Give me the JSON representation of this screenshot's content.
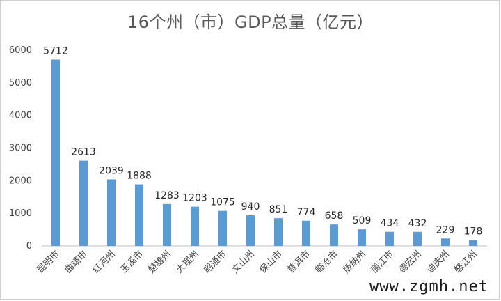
{
  "chart_data": {
    "type": "bar",
    "title": "16个州（市）GDP总量（亿元）",
    "categories": [
      "昆明市",
      "曲靖市",
      "红河州",
      "玉溪市",
      "楚雄州",
      "大理州",
      "昭通市",
      "文山州",
      "保山市",
      "普洱市",
      "临沧市",
      "版纳州",
      "丽江市",
      "德宏州",
      "迪庆州",
      "怒江州"
    ],
    "values": [
      5712,
      2613,
      2039,
      1888,
      1283,
      1203,
      1075,
      940,
      851,
      774,
      658,
      509,
      434,
      432,
      229,
      178
    ],
    "ylim": [
      0,
      6000
    ],
    "yticks": [
      0,
      1000,
      2000,
      3000,
      4000,
      5000,
      6000
    ],
    "xlabel": "",
    "ylabel": "",
    "grid": false,
    "legend": "none",
    "bar_color": "#5b9bd5"
  },
  "watermark": "www.zgmh.net"
}
